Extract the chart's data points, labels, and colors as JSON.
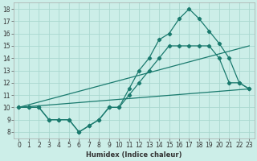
{
  "xlabel": "Humidex (Indice chaleur)",
  "background_color": "#cceee8",
  "grid_color": "#aad8d0",
  "line_color": "#1a7a6e",
  "xlim": [
    -0.5,
    23.5
  ],
  "ylim": [
    7.5,
    18.5
  ],
  "xticks": [
    0,
    1,
    2,
    3,
    4,
    5,
    6,
    7,
    8,
    9,
    10,
    11,
    12,
    13,
    14,
    15,
    16,
    17,
    18,
    19,
    20,
    21,
    22,
    23
  ],
  "yticks": [
    8,
    9,
    10,
    11,
    12,
    13,
    14,
    15,
    16,
    17,
    18
  ],
  "line1_x": [
    0,
    1,
    2,
    3,
    4,
    5,
    6,
    7,
    8,
    9,
    10,
    11,
    12,
    13,
    14,
    15,
    16,
    17,
    18,
    19,
    20,
    21,
    22,
    23
  ],
  "line1_y": [
    10,
    10,
    10,
    9,
    9,
    9,
    8,
    8.5,
    9,
    10,
    10,
    11.5,
    13,
    14,
    15.5,
    16,
    17.2,
    18,
    17.2,
    16.2,
    15.2,
    14,
    12,
    11.5
  ],
  "line2_x": [
    0,
    1,
    2,
    3,
    4,
    5,
    6,
    7,
    8,
    9,
    10,
    11,
    12,
    13,
    14,
    15,
    16,
    17,
    18,
    19,
    20,
    21,
    22,
    23
  ],
  "line2_y": [
    10,
    10,
    10,
    9,
    9,
    9,
    8,
    8.5,
    9,
    10,
    10,
    11,
    12,
    13,
    14,
    15,
    15,
    15,
    15,
    15,
    14,
    12,
    12,
    11.5
  ],
  "line3_x": [
    0,
    23
  ],
  "line3_y": [
    10,
    15.0
  ],
  "line4_x": [
    0,
    23
  ],
  "line4_y": [
    10,
    11.5
  ],
  "xlabel_fontsize": 6,
  "tick_fontsize": 5.5
}
